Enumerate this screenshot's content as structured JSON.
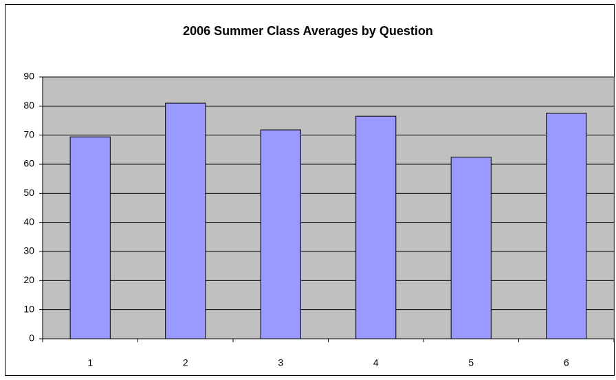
{
  "chart_data": {
    "type": "bar",
    "title": "2006 Summer Class Averages by Question",
    "categories": [
      "1",
      "2",
      "3",
      "4",
      "5",
      "6"
    ],
    "values": [
      69.4,
      81.0,
      71.8,
      76.5,
      62.4,
      77.5
    ],
    "color": "#9999ff",
    "ylim": [
      0,
      90
    ],
    "yticks": [
      0,
      10,
      20,
      30,
      40,
      50,
      60,
      70,
      80,
      90
    ],
    "grid": true
  }
}
